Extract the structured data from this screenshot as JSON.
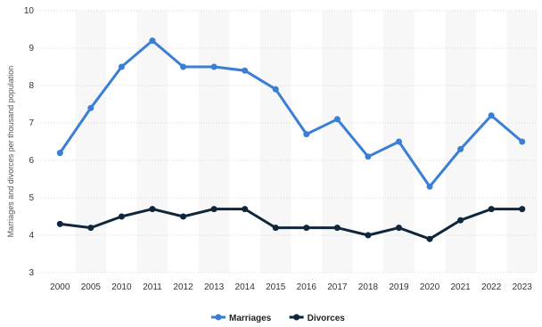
{
  "chart_data": {
    "type": "line",
    "categories": [
      "2000",
      "2005",
      "2010",
      "2011",
      "2012",
      "2013",
      "2014",
      "2015",
      "2016",
      "2017",
      "2018",
      "2019",
      "2020",
      "2021",
      "2022",
      "2023"
    ],
    "series": [
      {
        "name": "Marriages",
        "color": "#3a7fd5",
        "values": [
          6.2,
          7.4,
          8.5,
          9.2,
          8.5,
          8.5,
          8.4,
          7.9,
          6.7,
          7.1,
          6.1,
          6.5,
          5.3,
          6.3,
          7.2,
          6.5
        ]
      },
      {
        "name": "Divorces",
        "color": "#10263b",
        "values": [
          4.3,
          4.2,
          4.5,
          4.7,
          4.5,
          4.7,
          4.7,
          4.2,
          4.2,
          4.2,
          4.0,
          4.2,
          3.9,
          4.4,
          4.7,
          4.7
        ]
      }
    ],
    "ylabel": "Marriages and divorces per thousand population",
    "xlabel": "",
    "ylim": [
      3,
      10
    ],
    "yticks": [
      3,
      4,
      5,
      6,
      7,
      8,
      9,
      10
    ],
    "grid": true,
    "legend_position": "bottom-center"
  }
}
